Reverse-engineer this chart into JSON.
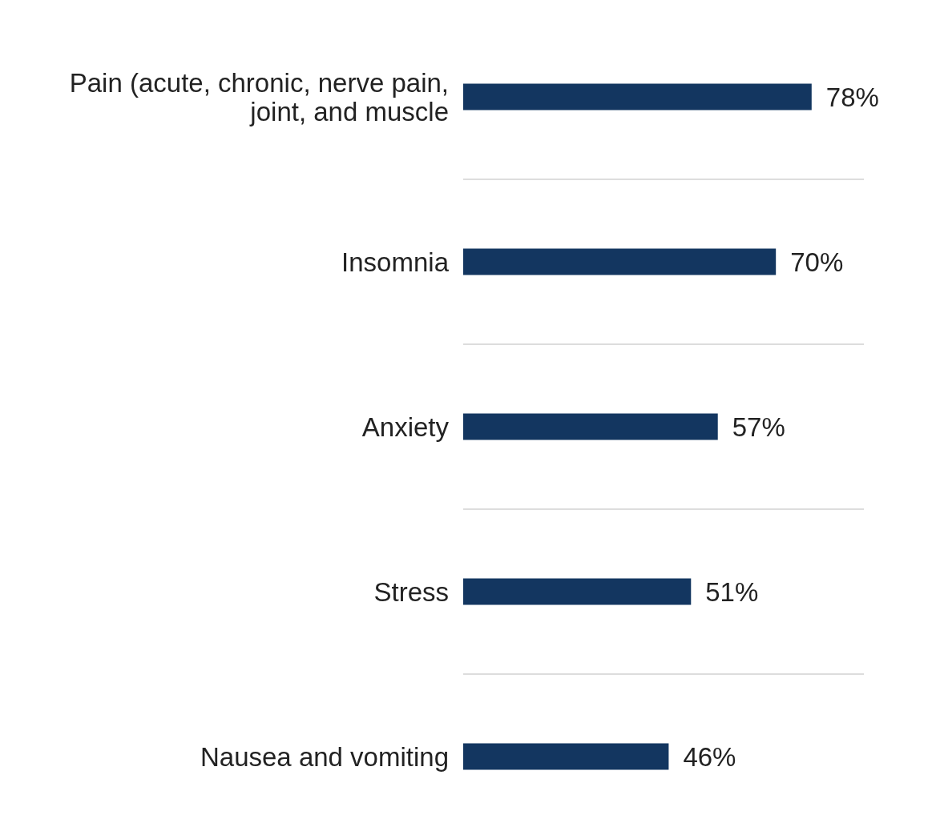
{
  "chart_data": {
    "type": "bar",
    "orientation": "horizontal",
    "categories": [
      "Pain (acute, chronic, nerve pain, joint, and muscle",
      "Insomnia",
      "Anxiety",
      "Stress",
      "Nausea and vomiting"
    ],
    "values": [
      78,
      70,
      57,
      51,
      46
    ],
    "value_labels": [
      "78%",
      "70%",
      "57%",
      "51%",
      "46%"
    ],
    "color": "#133660",
    "grid": "y"
  }
}
